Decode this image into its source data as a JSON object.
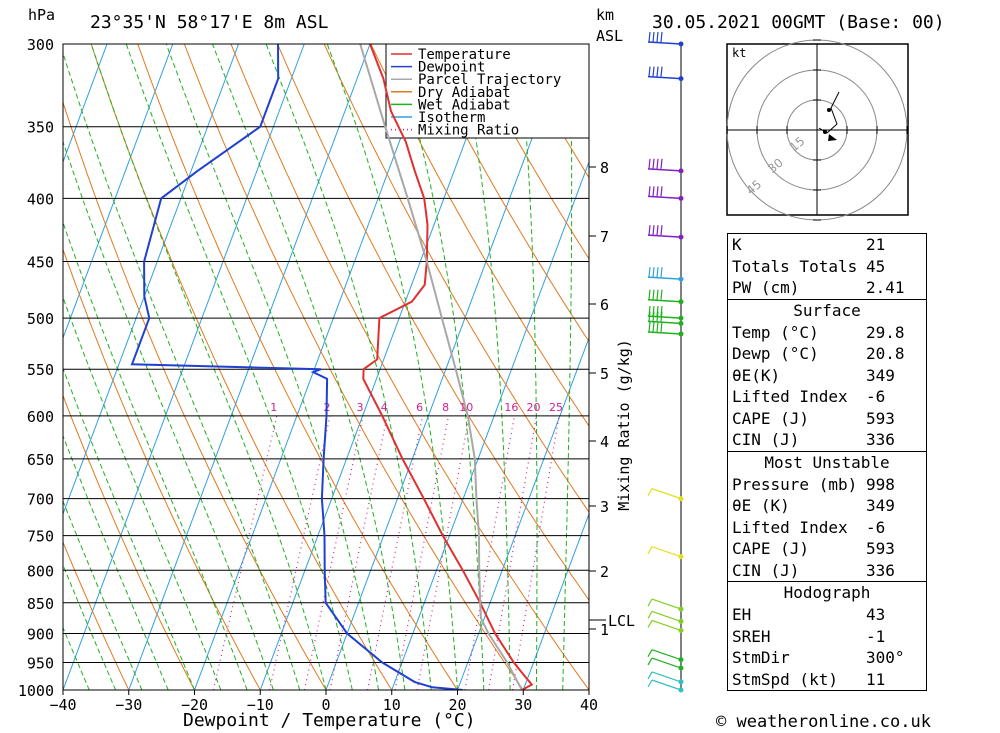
{
  "header": {
    "pressure_unit": "hPa",
    "location": "23°35'N 58°17'E 8m ASL",
    "height_unit_top": "km",
    "height_unit_bottom": "ASL",
    "datetime": "30.05.2021 00GMT (Base: 00)"
  },
  "footer": {
    "credit": "© weatheronline.co.uk"
  },
  "hodograph": {
    "unit": "kt",
    "ring_labels": [
      "15",
      "30",
      "45"
    ]
  },
  "indices": {
    "top": [
      {
        "label": "K",
        "value": "21"
      },
      {
        "label": "Totals Totals",
        "value": "45"
      },
      {
        "label": "PW (cm)",
        "value": "2.41"
      }
    ],
    "surface": {
      "title": "Surface",
      "rows": [
        {
          "label": "Temp (°C)",
          "value": "29.8"
        },
        {
          "label": "Dewp (°C)",
          "value": "20.8"
        },
        {
          "label": "θE(K)",
          "value": "349"
        },
        {
          "label": "Lifted Index",
          "value": "-6"
        },
        {
          "label": "CAPE (J)",
          "value": "593"
        },
        {
          "label": "CIN (J)",
          "value": "336"
        }
      ]
    },
    "most_unstable": {
      "title": "Most Unstable",
      "rows": [
        {
          "label": "Pressure (mb)",
          "value": "998"
        },
        {
          "label": "θE (K)",
          "value": "349"
        },
        {
          "label": "Lifted Index",
          "value": "-6"
        },
        {
          "label": "CAPE (J)",
          "value": "593"
        },
        {
          "label": "CIN (J)",
          "value": "336"
        }
      ]
    },
    "hodograph": {
      "title": "Hodograph",
      "rows": [
        {
          "label": "EH",
          "value": "43"
        },
        {
          "label": "SREH",
          "value": "-1"
        },
        {
          "label": "StmDir",
          "value": "300°"
        },
        {
          "label": "StmSpd (kt)",
          "value": "11"
        }
      ]
    }
  },
  "chart_data": {
    "type": "line",
    "subtype": "skew-T log-P",
    "xlabel": "Dewpoint / Temperature (°C)",
    "ylabel": "hPa",
    "right_label": "Mixing Ratio (g/kg)",
    "x_ticks": [
      -40,
      -30,
      -20,
      -10,
      0,
      10,
      20,
      30,
      40
    ],
    "pressure_levels": [
      300,
      350,
      400,
      450,
      500,
      550,
      600,
      650,
      700,
      750,
      800,
      850,
      900,
      950,
      1000
    ],
    "height_km_ticks": [
      "1",
      "2",
      "3",
      "4",
      "5",
      "6",
      "7",
      "8"
    ],
    "lcl_label": "LCL",
    "mixing_ratio_labels": [
      "1",
      "2",
      "3",
      "4",
      "6",
      "8",
      "10",
      "16",
      "20",
      "25"
    ],
    "legend": {
      "entries": [
        {
          "name": "Temperature",
          "color": "#e03030",
          "style": "solid"
        },
        {
          "name": "Dewpoint",
          "color": "#2040d0",
          "style": "solid"
        },
        {
          "name": "Parcel Trajectory",
          "color": "#a8a8a8",
          "style": "solid"
        },
        {
          "name": "Dry Adiabat",
          "color": "#e07a20",
          "style": "solid"
        },
        {
          "name": "Wet Adiabat",
          "color": "#20b020",
          "style": "solid"
        },
        {
          "name": "Isotherm",
          "color": "#30a0e0",
          "style": "solid"
        },
        {
          "name": "Mixing Ratio",
          "color": "#d02090",
          "style": "dotted"
        }
      ],
      "placement": "top-right"
    },
    "series": [
      {
        "name": "Temperature",
        "points": [
          [
            1000,
            29.8
          ],
          [
            990,
            31
          ],
          [
            970,
            29
          ],
          [
            950,
            27
          ],
          [
            900,
            22.5
          ],
          [
            850,
            18.5
          ],
          [
            800,
            14
          ],
          [
            750,
            9
          ],
          [
            700,
            4
          ],
          [
            650,
            -1.5
          ],
          [
            600,
            -7
          ],
          [
            560,
            -12
          ],
          [
            550,
            -12.5
          ],
          [
            540,
            -11
          ],
          [
            500,
            -13
          ],
          [
            485,
            -9
          ],
          [
            470,
            -8
          ],
          [
            450,
            -9
          ],
          [
            420,
            -11
          ],
          [
            400,
            -13
          ],
          [
            380,
            -16
          ],
          [
            360,
            -19
          ],
          [
            340,
            -23
          ],
          [
            320,
            -26
          ],
          [
            300,
            -30
          ]
        ]
      },
      {
        "name": "Dewpoint",
        "points": [
          [
            1000,
            20.8
          ],
          [
            995,
            16
          ],
          [
            985,
            13
          ],
          [
            950,
            7
          ],
          [
            900,
            0
          ],
          [
            850,
            -5
          ],
          [
            800,
            -7
          ],
          [
            750,
            -9
          ],
          [
            700,
            -11.5
          ],
          [
            650,
            -13.5
          ],
          [
            600,
            -15.5
          ],
          [
            560,
            -17.5
          ],
          [
            553,
            -20
          ],
          [
            550,
            -19
          ],
          [
            545,
            -48
          ],
          [
            500,
            -48
          ],
          [
            480,
            -50
          ],
          [
            450,
            -52
          ],
          [
            400,
            -53
          ],
          [
            380,
            -49
          ],
          [
            350,
            -42
          ],
          [
            320,
            -42
          ],
          [
            300,
            -44
          ]
        ]
      },
      {
        "name": "Parcel Trajectory",
        "points": [
          [
            1000,
            29.8
          ],
          [
            950,
            26
          ],
          [
            900,
            21.5
          ],
          [
            875,
            19.5
          ],
          [
            850,
            18.5
          ],
          [
            800,
            16.5
          ],
          [
            750,
            14.5
          ],
          [
            700,
            12
          ],
          [
            650,
            9.5
          ],
          [
            600,
            6
          ],
          [
            550,
            1.5
          ],
          [
            500,
            -3.5
          ],
          [
            450,
            -9
          ],
          [
            400,
            -15.5
          ],
          [
            350,
            -23
          ],
          [
            300,
            -31.5
          ]
        ]
      }
    ],
    "wind_barb_levels": [
      300,
      320,
      380,
      400,
      430,
      465,
      485,
      500,
      505,
      515,
      700,
      780,
      860,
      880,
      895,
      945,
      960,
      985,
      1000
    ],
    "xlim": [
      -40,
      40
    ],
    "ylim": [
      1000,
      300
    ],
    "y_scale": "log"
  }
}
